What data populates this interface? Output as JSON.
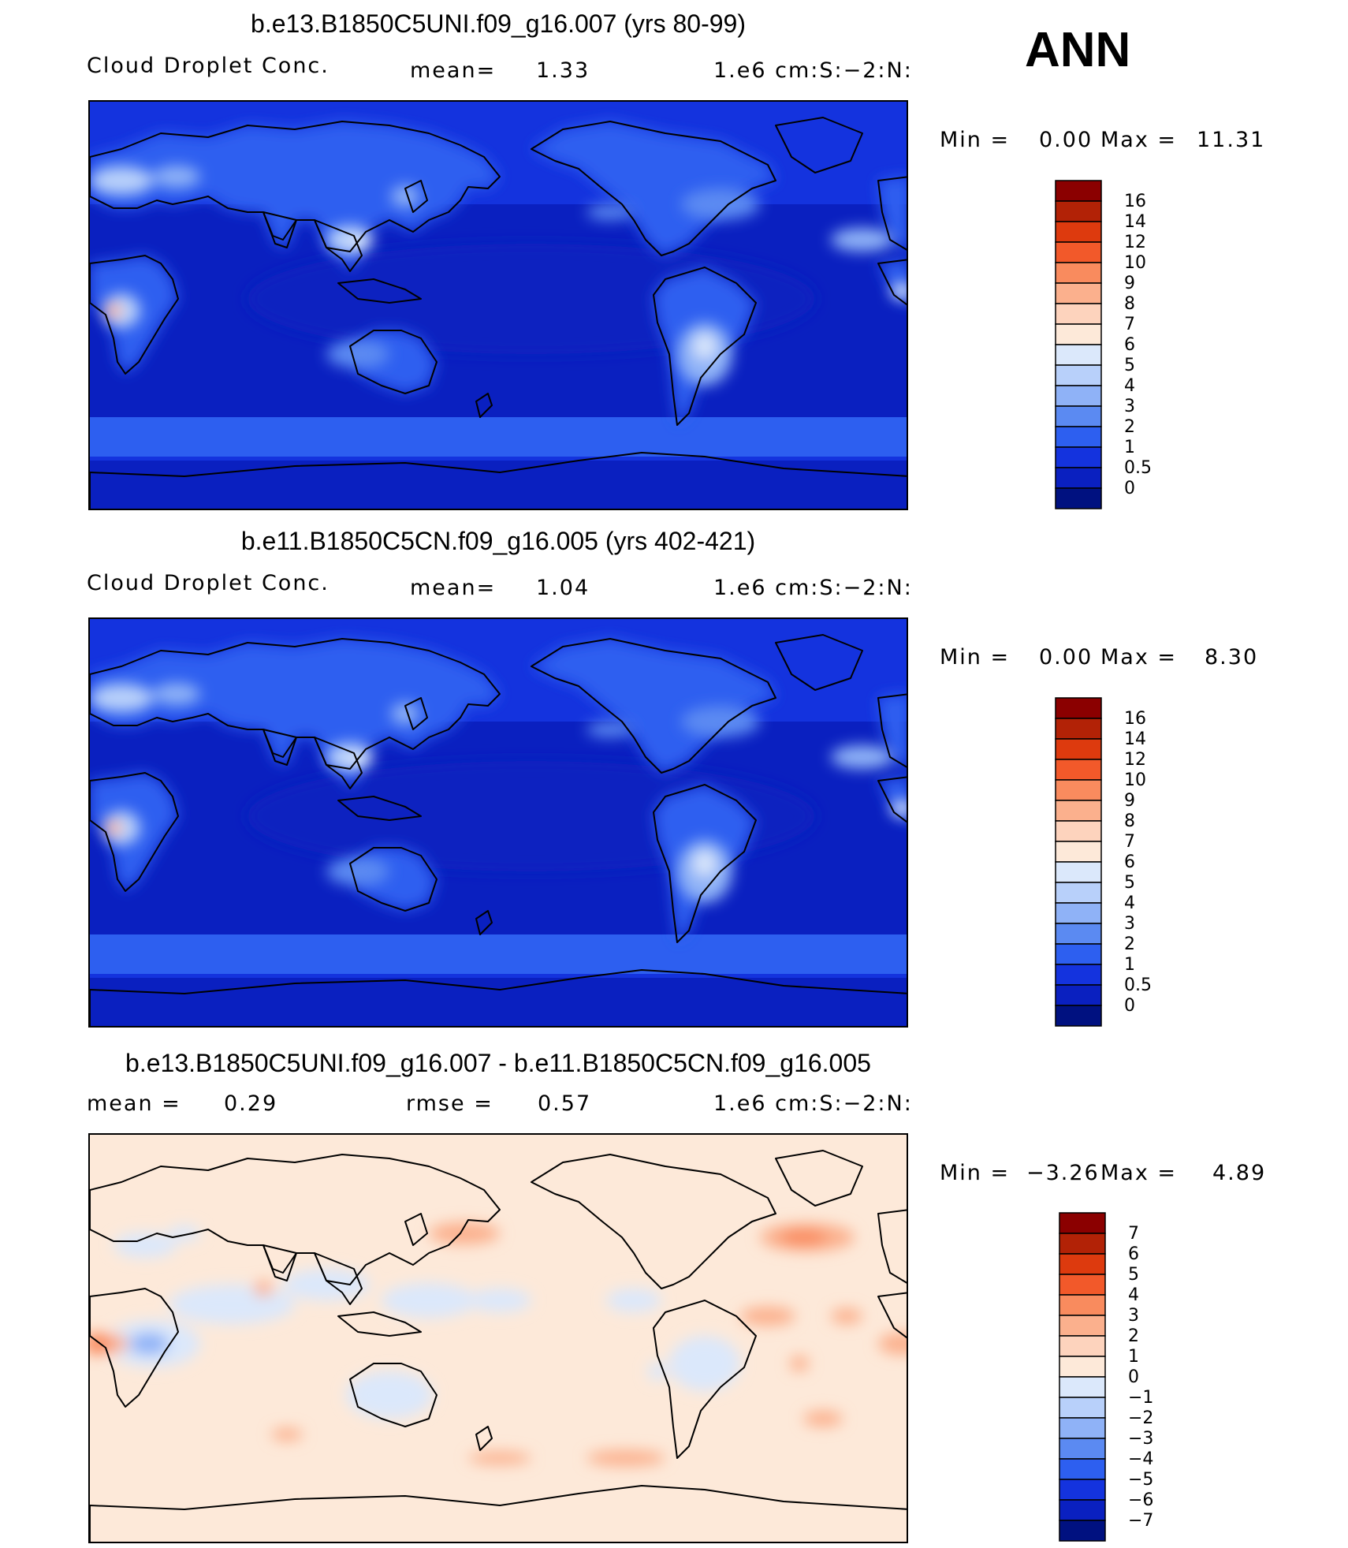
{
  "season": "ANN",
  "panels": [
    {
      "title": "b.e13.B1850C5UNI.f09_g16.007 (yrs 80-99)",
      "field": "Cloud Droplet Conc.",
      "stat_label": "mean=",
      "stat_value": "1.33",
      "units": "1.e6 cm:S:−2:N:",
      "minmax": {
        "min_label": "Min =",
        "min": "0.00",
        "max_label": "Max =",
        "max": "11.31"
      },
      "colorbar": {
        "labels": [
          "16",
          "14",
          "12",
          "10",
          "9",
          "8",
          "7",
          "6",
          "5",
          "4",
          "3",
          "2",
          "1",
          "0.5",
          "0"
        ],
        "colors": [
          "#8b0000",
          "#b22206",
          "#dd3a0e",
          "#f2592a",
          "#f98b5e",
          "#fbb08d",
          "#fdd3bd",
          "#fde9d9",
          "#dbe8fb",
          "#b8d0fa",
          "#8fb2f7",
          "#5b8af2",
          "#2d5ff0",
          "#1433de",
          "#0a20c0",
          "#001180"
        ]
      },
      "map_style": "model"
    },
    {
      "title": "b.e11.B1850C5CN.f09_g16.005 (yrs 402-421)",
      "field": "Cloud Droplet Conc.",
      "stat_label": "mean=",
      "stat_value": "1.04",
      "units": "1.e6 cm:S:−2:N:",
      "minmax": {
        "min_label": "Min =",
        "min": "0.00",
        "max_label": "Max =",
        "max": "8.30"
      },
      "colorbar": {
        "labels": [
          "16",
          "14",
          "12",
          "10",
          "9",
          "8",
          "7",
          "6",
          "5",
          "4",
          "3",
          "2",
          "1",
          "0.5",
          "0"
        ],
        "colors": [
          "#8b0000",
          "#b22206",
          "#dd3a0e",
          "#f2592a",
          "#f98b5e",
          "#fbb08d",
          "#fdd3bd",
          "#fde9d9",
          "#dbe8fb",
          "#b8d0fa",
          "#8fb2f7",
          "#5b8af2",
          "#2d5ff0",
          "#1433de",
          "#0a20c0",
          "#001180"
        ]
      },
      "map_style": "model"
    },
    {
      "title": "b.e13.B1850C5UNI.f09_g16.007 - b.e11.B1850C5CN.f09_g16.005",
      "stat_label": "mean =",
      "stat_value": "0.29",
      "stat2_label": "rmse =",
      "stat2_value": "0.57",
      "units": "1.e6 cm:S:−2:N:",
      "minmax": {
        "min_label": "Min =",
        "min": "−3.26",
        "max_label": "Max =",
        "max": "4.89"
      },
      "colorbar": {
        "labels": [
          "7",
          "6",
          "5",
          "4",
          "3",
          "2",
          "1",
          "0",
          "−1",
          "−2",
          "−3",
          "−4",
          "−5",
          "−6",
          "−7"
        ],
        "colors": [
          "#8b0000",
          "#b22206",
          "#dd3a0e",
          "#f2592a",
          "#f98b5e",
          "#fbb08d",
          "#fdd3bd",
          "#fde9d9",
          "#dbe8fb",
          "#b8d0fa",
          "#8fb2f7",
          "#5b8af2",
          "#2d5ff0",
          "#1433de",
          "#0a20c0",
          "#001180"
        ]
      },
      "map_style": "diff"
    }
  ]
}
